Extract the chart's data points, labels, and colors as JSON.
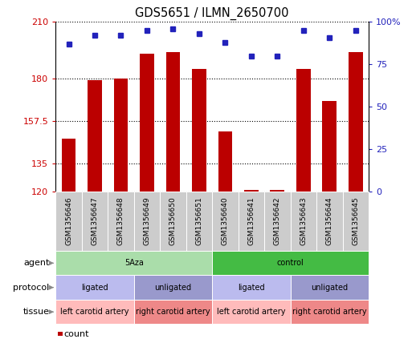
{
  "title": "GDS5651 / ILMN_2650700",
  "samples": [
    "GSM1356646",
    "GSM1356647",
    "GSM1356648",
    "GSM1356649",
    "GSM1356650",
    "GSM1356651",
    "GSM1356640",
    "GSM1356641",
    "GSM1356642",
    "GSM1356643",
    "GSM1356644",
    "GSM1356645"
  ],
  "bar_values": [
    148,
    179,
    180,
    193,
    194,
    185,
    152,
    121,
    121,
    185,
    168,
    194
  ],
  "percentile_values": [
    87,
    92,
    92,
    95,
    96,
    93,
    88,
    80,
    80,
    95,
    91,
    95
  ],
  "bar_color": "#bb0000",
  "percentile_color": "#2222bb",
  "ymin": 120,
  "ymax": 210,
  "yticks": [
    120,
    135,
    157.5,
    180,
    210
  ],
  "ytick_labels": [
    "120",
    "135",
    "157.5",
    "180",
    "210"
  ],
  "y2min": 0,
  "y2max": 100,
  "y2ticks": [
    0,
    25,
    50,
    75,
    100
  ],
  "y2tick_labels": [
    "0",
    "25",
    "50",
    "75",
    "100%"
  ],
  "grid_color": "#000000",
  "agent_labels": [
    {
      "text": "5Aza",
      "start": 0,
      "end": 6,
      "color": "#aaddaa"
    },
    {
      "text": "control",
      "start": 6,
      "end": 12,
      "color": "#44bb44"
    }
  ],
  "protocol_labels": [
    {
      "text": "ligated",
      "start": 0,
      "end": 3,
      "color": "#bbbbee"
    },
    {
      "text": "unligated",
      "start": 3,
      "end": 6,
      "color": "#9999cc"
    },
    {
      "text": "ligated",
      "start": 6,
      "end": 9,
      "color": "#bbbbee"
    },
    {
      "text": "unligated",
      "start": 9,
      "end": 12,
      "color": "#9999cc"
    }
  ],
  "tissue_labels": [
    {
      "text": "left carotid artery",
      "start": 0,
      "end": 3,
      "color": "#ffbbbb"
    },
    {
      "text": "right carotid artery",
      "start": 3,
      "end": 6,
      "color": "#ee8888"
    },
    {
      "text": "left carotid artery",
      "start": 6,
      "end": 9,
      "color": "#ffbbbb"
    },
    {
      "text": "right carotid artery",
      "start": 9,
      "end": 12,
      "color": "#ee8888"
    }
  ],
  "legend_count_color": "#bb0000",
  "legend_percentile_color": "#2222bb",
  "row_label_names": [
    "agent",
    "protocol",
    "tissue"
  ],
  "background_color": "#ffffff",
  "sample_bg_color": "#cccccc",
  "tick_color_left": "#cc0000",
  "tick_color_right": "#2222bb"
}
